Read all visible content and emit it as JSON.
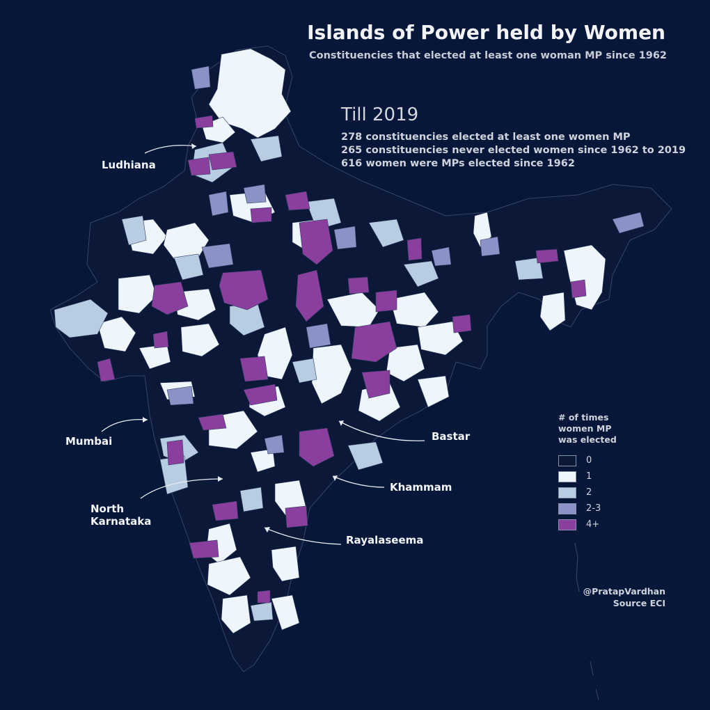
{
  "header": {
    "title": "Islands of Power held by Women",
    "subtitle": "Constituencies that elected at least one woman MP since 1962"
  },
  "stats": {
    "heading": "Till 2019",
    "lines": [
      "278 constituencies elected at least one women MP",
      "265 constituencies never elected women since 1962 to 2019",
      "616 women were MPs elected since 1962"
    ]
  },
  "callouts": {
    "ludhiana": "Ludhiana",
    "mumbai": "Mumbai",
    "north_karnataka": "North\nKarnataka",
    "bastar": "Bastar",
    "khammam": "Khammam",
    "rayalaseema": "Rayalaseema"
  },
  "legend": {
    "title": "# of times\nwomen MP\nwas elected",
    "items": [
      {
        "label": "0",
        "color": "#0b1838"
      },
      {
        "label": "1",
        "color": "#eef6fb"
      },
      {
        "label": "2",
        "color": "#b9cde2"
      },
      {
        "label": "2-3",
        "color": "#8b93c6"
      },
      {
        "label": "4+",
        "color": "#8a3f9e"
      }
    ]
  },
  "credit": {
    "author": "@PratapVardhan",
    "source": "Source ECI"
  },
  "colors": {
    "background": "#06173a",
    "map_base": "#0b1838",
    "border": "#3b4a6b"
  }
}
